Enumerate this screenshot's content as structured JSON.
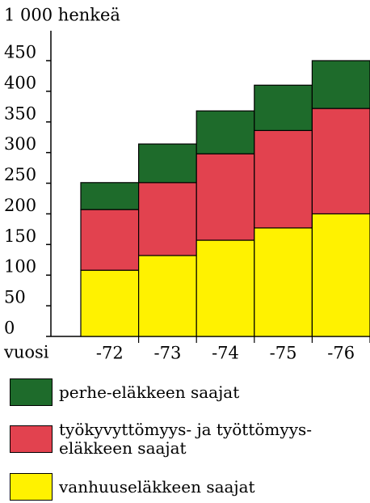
{
  "chart_data": {
    "type": "stacked_bar",
    "y_label": "1 000 henkeä",
    "x_label": "vuosi",
    "categories": [
      "-72",
      "-73",
      "-74",
      "-75",
      "-76"
    ],
    "series": [
      {
        "name": "vanhuuseläkkeen saajat",
        "color": "#fff200",
        "values": [
          108,
          132,
          157,
          177,
          200
        ]
      },
      {
        "name": "työkyvyttömyys- ja työttömyys-\neläkkeen saajat",
        "color": "#e2424f",
        "values": [
          99,
          119,
          141,
          159,
          172
        ]
      },
      {
        "name": "perhe-eläkkeen saajat",
        "color": "#1e6b2b",
        "values": [
          44,
          63,
          70,
          74,
          78
        ]
      }
    ],
    "ylim": [
      0,
      450
    ],
    "yticks": [
      0,
      50,
      100,
      150,
      200,
      250,
      300,
      350,
      400,
      450
    ],
    "grid": false
  }
}
